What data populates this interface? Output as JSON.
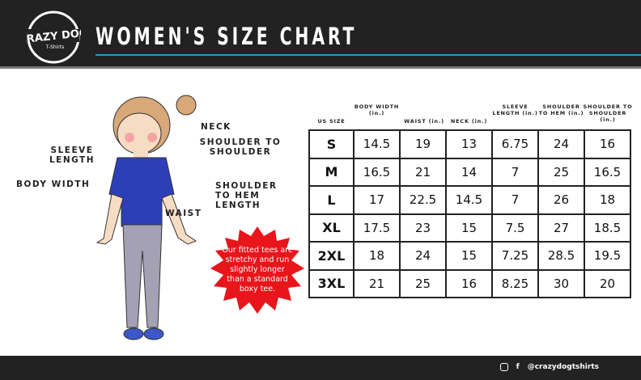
{
  "header": {
    "title": "WOMEN'S SIZE CHART",
    "logo_text": "CRAZY DOG T-Shirts",
    "accent": "#1e9ad6"
  },
  "labels": {
    "neck": "NECK",
    "shoulder_to_shoulder": "SHOULDER TO SHOULDER",
    "sleeve_length": "SLEEVE LENGTH",
    "body_width": "BODY WIDTH",
    "shoulder_to_hem": "SHOULDER TO HEM LENGTH",
    "waist": "WAIST"
  },
  "note": {
    "text": "Our fitted tees are stretchy and run slightly longer than a standard boxy tee.",
    "color": "#e8151b"
  },
  "table": {
    "headers": [
      "US SIZE",
      "BODY WIDTH (in.)",
      "WAIST (in.)",
      "NECK (in.)",
      "SLEEVE LENGTH (in.)",
      "SHOULDER TO HEM (in.)",
      "SHOULDER TO SHOULDER (in.)"
    ],
    "rows": [
      [
        "S",
        "14.5",
        "19",
        "13",
        "6.75",
        "24",
        "16"
      ],
      [
        "M",
        "16.5",
        "21",
        "14",
        "7",
        "25",
        "16.5"
      ],
      [
        "L",
        "17",
        "22.5",
        "14.5",
        "7",
        "26",
        "18"
      ],
      [
        "XL",
        "17.5",
        "23",
        "15",
        "7.5",
        "27",
        "18.5"
      ],
      [
        "2XL",
        "18",
        "24",
        "15",
        "7.25",
        "28.5",
        "19.5"
      ],
      [
        "3XL",
        "21",
        "25",
        "16",
        "8.25",
        "30",
        "20"
      ]
    ]
  },
  "footer": {
    "handle": "@crazydogtshirts",
    "icons": [
      "instagram-icon",
      "facebook-icon"
    ]
  }
}
